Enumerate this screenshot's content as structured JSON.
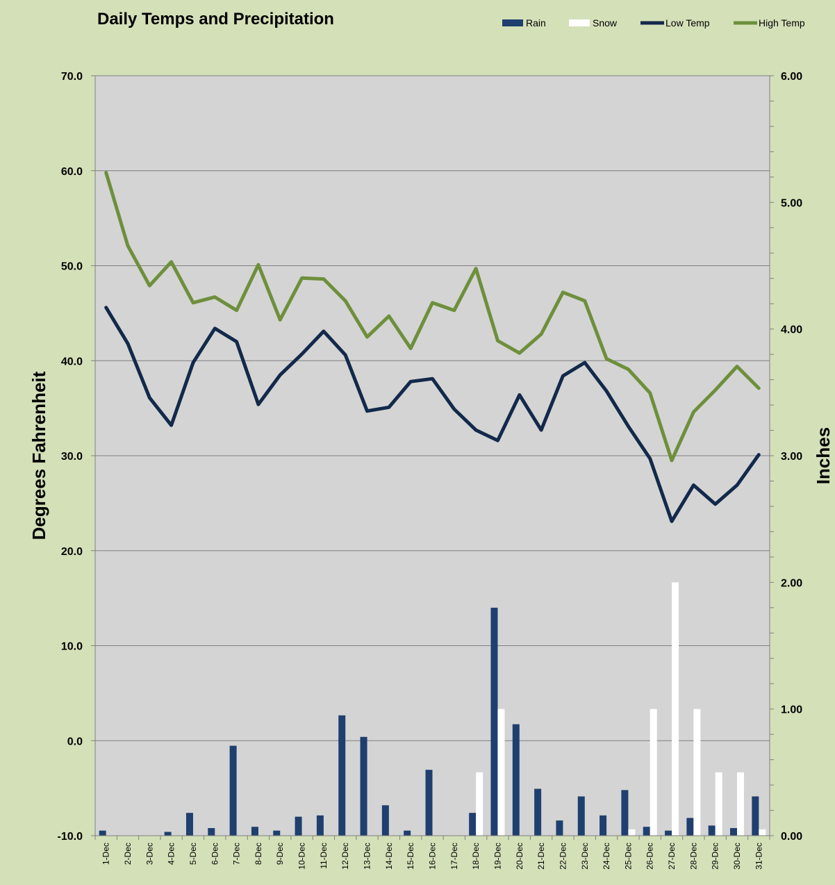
{
  "chart_data": {
    "type": "bar+line",
    "title": "Daily Temps and Precipitation",
    "ylabel": "Degrees Fahrenheit",
    "y2label": "Inches",
    "ylim": [
      -10,
      70
    ],
    "y2lim": [
      0,
      6
    ],
    "y_ticks": [
      "70.0",
      "60.0",
      "50.0",
      "40.0",
      "30.0",
      "20.0",
      "10.0",
      "0.0",
      "-10.0"
    ],
    "y2_ticks": [
      "6.00",
      "5.00",
      "4.00",
      "3.00",
      "2.00",
      "1.00",
      "0.00"
    ],
    "grid": true,
    "legend_position": "top-right",
    "categories": [
      "1-Dec",
      "2-Dec",
      "3-Dec",
      "4-Dec",
      "5-Dec",
      "6-Dec",
      "7-Dec",
      "8-Dec",
      "9-Dec",
      "10-Dec",
      "11-Dec",
      "12-Dec",
      "13-Dec",
      "14-Dec",
      "15-Dec",
      "16-Dec",
      "17-Dec",
      "18-Dec",
      "19-Dec",
      "20-Dec",
      "21-Dec",
      "22-Dec",
      "23-Dec",
      "24-Dec",
      "25-Dec",
      "26-Dec",
      "27-Dec",
      "28-Dec",
      "29-Dec",
      "30-Dec",
      "31-Dec"
    ],
    "series": [
      {
        "name": "Rain",
        "kind": "bar",
        "axis": "right",
        "color": "#1f3f6e",
        "values": [
          0.04,
          0,
          0,
          0.03,
          0.18,
          0.06,
          0.71,
          0.07,
          0.04,
          0.15,
          0.16,
          0.95,
          0.78,
          0.24,
          0.04,
          0.52,
          0,
          0.18,
          1.8,
          0.88,
          0.37,
          0.12,
          0.31,
          0.16,
          0.36,
          0.07,
          0.04,
          0.14,
          0.08,
          0.06,
          0.31
        ]
      },
      {
        "name": "Snow",
        "kind": "bar",
        "axis": "right",
        "color": "#ffffff",
        "values": [
          0,
          0,
          0,
          0,
          0,
          0,
          0,
          0,
          0,
          0,
          0,
          0,
          0,
          0,
          0,
          0,
          0,
          0.5,
          1.0,
          0,
          0,
          0,
          0,
          0,
          0.05,
          1.0,
          2.0,
          1.0,
          0.5,
          0.5,
          0.05
        ]
      },
      {
        "name": "Low Temp",
        "kind": "line",
        "axis": "left",
        "color": "#13294b",
        "values": [
          45.6,
          41.8,
          36.1,
          33.2,
          39.8,
          43.4,
          42.0,
          35.4,
          38.5,
          40.7,
          43.1,
          40.6,
          34.7,
          35.1,
          37.8,
          38.1,
          34.9,
          32.7,
          31.6,
          36.4,
          32.7,
          38.4,
          39.8,
          36.8,
          33.1,
          29.7,
          23.1,
          26.9,
          24.9,
          26.9,
          30.1
        ]
      },
      {
        "name": "High Temp",
        "kind": "line",
        "axis": "left",
        "color": "#6e8f3c",
        "values": [
          59.8,
          52.1,
          47.9,
          50.4,
          46.1,
          46.7,
          45.3,
          50.1,
          44.3,
          48.7,
          48.6,
          46.3,
          42.5,
          44.7,
          41.3,
          46.1,
          45.3,
          49.7,
          42.1,
          40.8,
          42.8,
          47.2,
          46.3,
          40.2,
          39.1,
          36.6,
          29.5,
          34.6,
          36.9,
          39.4,
          37.1
        ]
      }
    ]
  }
}
